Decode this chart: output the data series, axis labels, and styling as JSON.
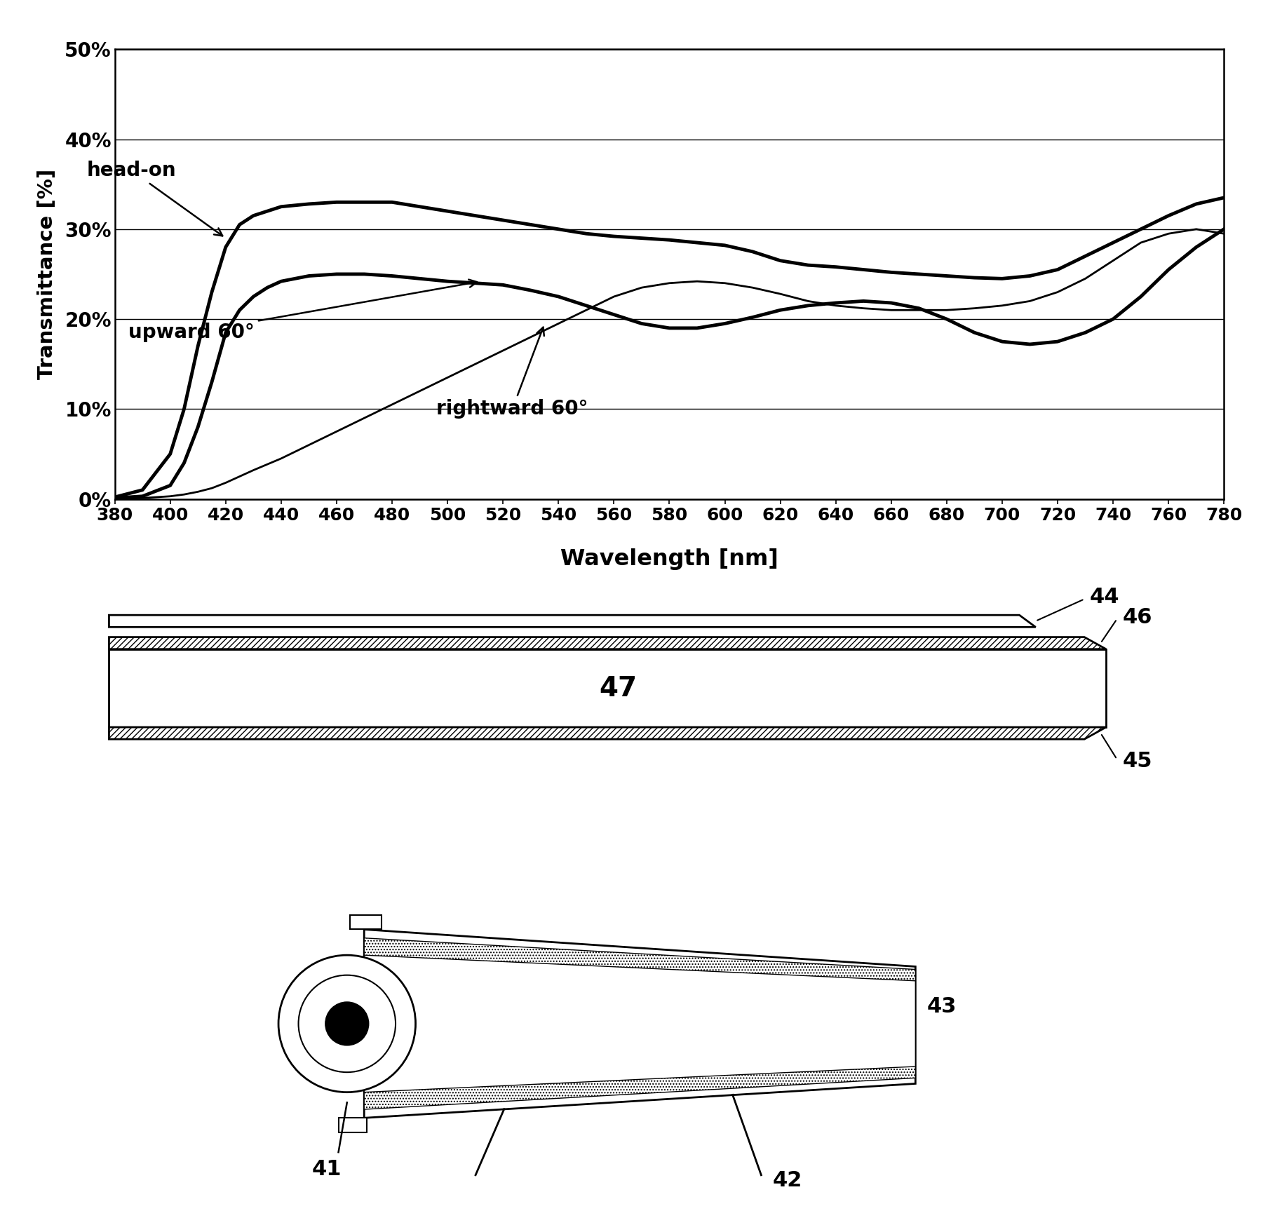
{
  "ylabel": "Transmittance [%]",
  "xlabel": "Wavelength [nm]",
  "xlim": [
    380,
    780
  ],
  "ylim": [
    0,
    50
  ],
  "yticks": [
    0,
    10,
    20,
    30,
    40,
    50
  ],
  "ytick_labels": [
    "0%",
    "10%",
    "20%",
    "30%",
    "40%",
    "50%"
  ],
  "xticks": [
    380,
    400,
    420,
    440,
    460,
    480,
    500,
    520,
    540,
    560,
    580,
    600,
    620,
    640,
    660,
    680,
    700,
    720,
    740,
    760,
    780
  ],
  "head_on_x": [
    380,
    390,
    400,
    405,
    410,
    415,
    420,
    425,
    430,
    435,
    440,
    450,
    460,
    470,
    480,
    490,
    500,
    510,
    520,
    530,
    540,
    550,
    560,
    570,
    580,
    590,
    600,
    610,
    620,
    630,
    640,
    650,
    660,
    670,
    680,
    690,
    700,
    710,
    720,
    730,
    740,
    750,
    760,
    770,
    780
  ],
  "head_on_y": [
    0.2,
    1.0,
    5.0,
    10.0,
    17.0,
    23.0,
    28.0,
    30.5,
    31.5,
    32.0,
    32.5,
    32.8,
    33.0,
    33.0,
    33.0,
    32.5,
    32.0,
    31.5,
    31.0,
    30.5,
    30.0,
    29.5,
    29.2,
    29.0,
    28.8,
    28.5,
    28.2,
    27.5,
    26.5,
    26.0,
    25.8,
    25.5,
    25.2,
    25.0,
    24.8,
    24.6,
    24.5,
    24.8,
    25.5,
    27.0,
    28.5,
    30.0,
    31.5,
    32.8,
    33.5
  ],
  "upward_x": [
    380,
    390,
    400,
    405,
    410,
    415,
    420,
    425,
    430,
    435,
    440,
    450,
    460,
    470,
    480,
    490,
    500,
    510,
    520,
    525,
    530,
    540,
    550,
    560,
    570,
    580,
    590,
    600,
    610,
    620,
    630,
    640,
    650,
    660,
    670,
    680,
    690,
    700,
    710,
    720,
    730,
    740,
    750,
    760,
    770,
    780
  ],
  "upward_y": [
    0.1,
    0.3,
    1.5,
    4.0,
    8.0,
    13.0,
    18.5,
    21.0,
    22.5,
    23.5,
    24.2,
    24.8,
    25.0,
    25.0,
    24.8,
    24.5,
    24.2,
    24.0,
    23.8,
    23.5,
    23.2,
    22.5,
    21.5,
    20.5,
    19.5,
    19.0,
    19.0,
    19.5,
    20.2,
    21.0,
    21.5,
    21.8,
    22.0,
    21.8,
    21.2,
    20.0,
    18.5,
    17.5,
    17.2,
    17.5,
    18.5,
    20.0,
    22.5,
    25.5,
    28.0,
    30.0
  ],
  "rightward_x": [
    380,
    390,
    400,
    405,
    410,
    415,
    420,
    425,
    430,
    440,
    450,
    460,
    470,
    480,
    490,
    500,
    510,
    520,
    530,
    540,
    550,
    560,
    570,
    580,
    590,
    600,
    610,
    620,
    630,
    640,
    650,
    660,
    670,
    680,
    690,
    700,
    710,
    720,
    730,
    740,
    750,
    760,
    770,
    780
  ],
  "rightward_y": [
    0.0,
    0.1,
    0.3,
    0.5,
    0.8,
    1.2,
    1.8,
    2.5,
    3.2,
    4.5,
    6.0,
    7.5,
    9.0,
    10.5,
    12.0,
    13.5,
    15.0,
    16.5,
    18.0,
    19.5,
    21.0,
    22.5,
    23.5,
    24.0,
    24.2,
    24.0,
    23.5,
    22.8,
    22.0,
    21.5,
    21.2,
    21.0,
    21.0,
    21.0,
    21.2,
    21.5,
    22.0,
    23.0,
    24.5,
    26.5,
    28.5,
    29.5,
    30.0,
    29.5
  ],
  "line_color": "#000000",
  "bg_color": "#ffffff",
  "label_head_on": "head-on",
  "label_upward": "upward 60°",
  "label_rightward": "rightward 60°",
  "label44": "44",
  "label46": "46",
  "label47": "47",
  "label45": "45",
  "label43": "43",
  "label42": "42",
  "label41": "41"
}
